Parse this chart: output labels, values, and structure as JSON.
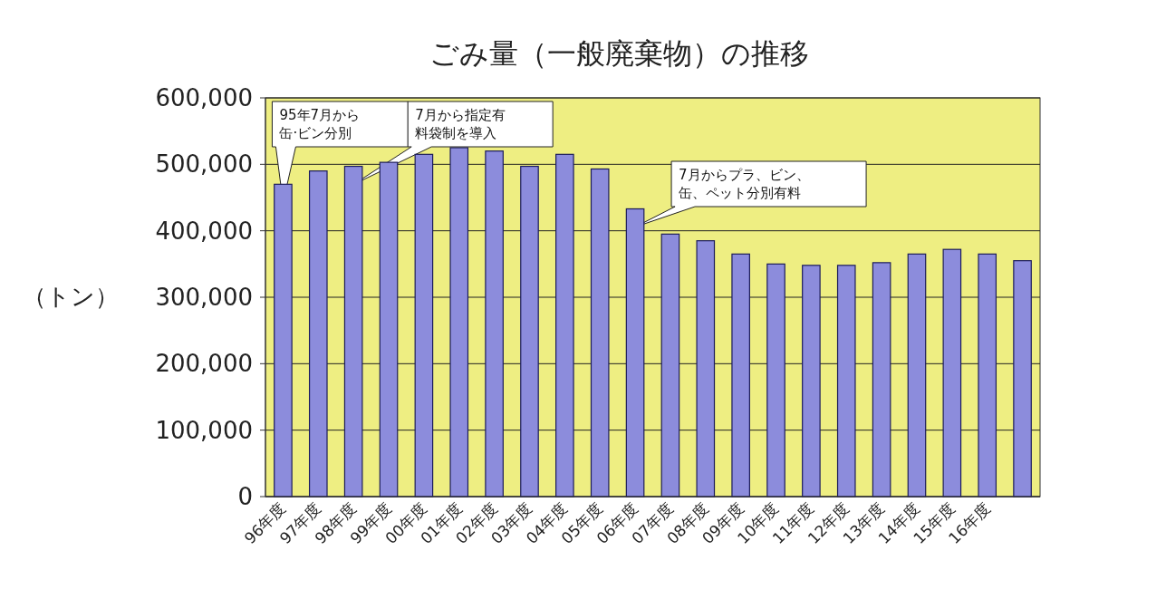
{
  "chart_data": {
    "type": "bar",
    "title": "ごみ量（一般廃棄物）の推移",
    "ylabel": "（トン）",
    "categories": [
      "96年度",
      "97年度",
      "98年度",
      "99年度",
      "00年度",
      "01年度",
      "02年度",
      "03年度",
      "04年度",
      "05年度",
      "06年度",
      "07年度",
      "08年度",
      "09年度",
      "10年度",
      "11年度",
      "12年度",
      "13年度",
      "14年度",
      "15年度",
      "16年度",
      null
    ],
    "values": [
      470000,
      490000,
      497000,
      503000,
      515000,
      525000,
      520000,
      497000,
      515000,
      493000,
      433000,
      395000,
      385000,
      365000,
      350000,
      348000,
      348000,
      352000,
      365000,
      372000,
      365000,
      355000
    ],
    "color": "#8c8cdc",
    "ylim": [
      0,
      600000
    ],
    "yticks": [
      0,
      {
        "value": 100000,
        "label": "100,000"
      },
      {
        "value": 200000,
        "label": "200,000"
      },
      {
        "value": 300000,
        "label": "300,000"
      },
      {
        "value": 400000,
        "label": "400,000"
      },
      {
        "value": 500000,
        "label": "500,000"
      },
      {
        "value": 600000,
        "label": "600,000"
      }
    ],
    "grid": "y",
    "annotations": [
      "95年7月から缶·ビン分別",
      "7月から指定有料袋制を導入",
      "7月からプラ、ビン、缶、ペット分別有料"
    ]
  }
}
